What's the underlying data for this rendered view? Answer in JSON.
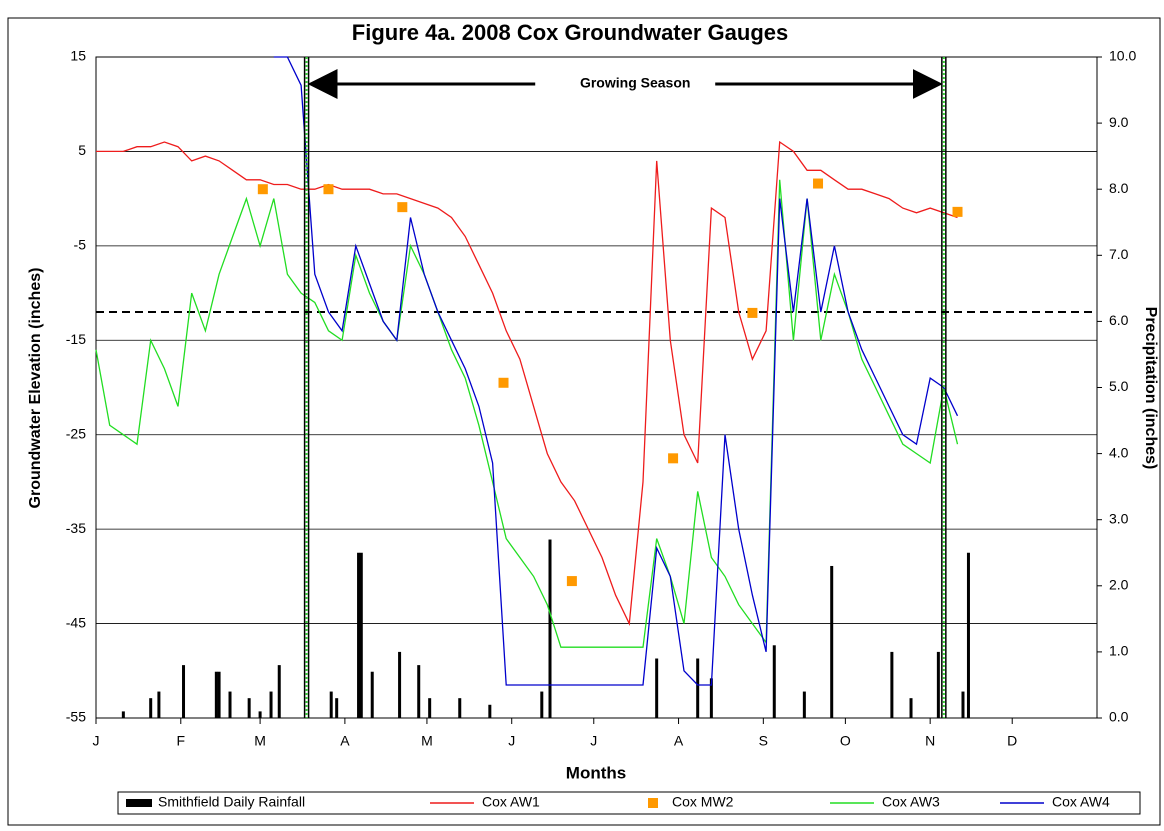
{
  "chart_data": {
    "type": "line",
    "title": "Figure 4a.  2008 Cox Groundwater Gauges",
    "x_label": "Months",
    "y_label": "Groundwater Elevation (inches)",
    "y2_label": "Precipitation (inches)",
    "xlim": [
      0,
      366
    ],
    "xticks": [
      {
        "value": 0,
        "label": "J"
      },
      {
        "value": 31,
        "label": "F"
      },
      {
        "value": 60,
        "label": "M"
      },
      {
        "value": 91,
        "label": "A"
      },
      {
        "value": 121,
        "label": "M"
      },
      {
        "value": 152,
        "label": "J"
      },
      {
        "value": 182,
        "label": "J"
      },
      {
        "value": 213,
        "label": "A"
      },
      {
        "value": 244,
        "label": "S"
      },
      {
        "value": 274,
        "label": "O"
      },
      {
        "value": 305,
        "label": "N"
      },
      {
        "value": 335,
        "label": "D"
      }
    ],
    "ylim": [
      -55,
      15
    ],
    "yticks": [
      15,
      5,
      -5,
      -15,
      -25,
      -35,
      -45,
      -55
    ],
    "y2lim": [
      0,
      10
    ],
    "y2ticks": [
      {
        "value": 10,
        "label": "10.0"
      },
      {
        "value": 9,
        "label": "9.0"
      },
      {
        "value": 8,
        "label": "8.0"
      },
      {
        "value": 7,
        "label": "7.0"
      },
      {
        "value": 6,
        "label": "6.0"
      },
      {
        "value": 5,
        "label": "5.0"
      },
      {
        "value": 4,
        "label": "4.0"
      },
      {
        "value": 3,
        "label": "3.0"
      },
      {
        "value": 2,
        "label": "2.0"
      },
      {
        "value": 1,
        "label": "1.0"
      },
      {
        "value": 0,
        "label": "0.0"
      }
    ],
    "grid": true,
    "reference_line": -12,
    "annotation": {
      "text": "Growing Season",
      "x": [
        77,
        310
      ]
    },
    "x": [
      0,
      5,
      10,
      15,
      20,
      25,
      30,
      35,
      40,
      45,
      50,
      55,
      60,
      65,
      70,
      75,
      80,
      85,
      90,
      95,
      100,
      105,
      110,
      115,
      120,
      125,
      130,
      135,
      140,
      145,
      150,
      155,
      160,
      165,
      170,
      175,
      180,
      185,
      190,
      195,
      200,
      205,
      210,
      215,
      220,
      225,
      230,
      235,
      240,
      245,
      250,
      255,
      260,
      265,
      270,
      275,
      280,
      285,
      290,
      295,
      300,
      305,
      310,
      315,
      320,
      325,
      330,
      335,
      340,
      345,
      350,
      355,
      360,
      365
    ],
    "series": [
      {
        "name": "Smithfield Daily Rainfall",
        "kind": "bar",
        "axis": "y2",
        "color": "#000000",
        "x": [
          10,
          20,
          23,
          32,
          44,
          45,
          49,
          56,
          60,
          64,
          67,
          86,
          88,
          96,
          97,
          101,
          111,
          118,
          122,
          133,
          144,
          163,
          166,
          205,
          220,
          225,
          248,
          259,
          269,
          291,
          298,
          308,
          317,
          319
        ],
        "values": [
          0.1,
          0.3,
          0.4,
          0.8,
          0.7,
          0.7,
          0.4,
          0.3,
          0.1,
          0.4,
          0.8,
          0.4,
          0.3,
          2.5,
          2.5,
          0.7,
          1.0,
          0.8,
          0.3,
          0.3,
          0.2,
          0.4,
          2.7,
          0.9,
          0.9,
          0.6,
          1.1,
          0.4,
          2.3,
          1.0,
          0.3,
          1.0,
          0.4,
          2.5
        ]
      },
      {
        "name": "Cox AW1",
        "kind": "line",
        "color": "#ee1c1c",
        "values": [
          5,
          5,
          5,
          5.5,
          5.5,
          6,
          5.5,
          4,
          4.5,
          4,
          3,
          2,
          2,
          1.5,
          1.5,
          1,
          1,
          1.5,
          1,
          1,
          1,
          0.5,
          0.5,
          0,
          -0.5,
          -1,
          -2,
          -4,
          -7,
          -10,
          -14,
          -17,
          -22,
          -27,
          -30,
          -32,
          -35,
          -38,
          -42,
          -45,
          -30,
          4,
          -15,
          -25,
          -28,
          -1,
          -2,
          -12,
          -17,
          -14,
          6,
          5,
          3,
          3,
          2,
          1,
          1,
          0.5,
          0,
          -1,
          -1.5,
          -1,
          -1.5,
          -2,
          null,
          null,
          null,
          null,
          null,
          null,
          null,
          null,
          null,
          null
        ]
      },
      {
        "name": "Cox MW2",
        "kind": "point",
        "color": "#ff9900",
        "x": [
          61,
          85,
          112,
          149,
          174,
          211,
          240,
          264,
          315
        ],
        "values": [
          1,
          1,
          -0.9,
          -19.5,
          -40.5,
          -27.5,
          -12.1,
          1.6,
          -1.4
        ]
      },
      {
        "name": "Cox AW3",
        "kind": "line",
        "color": "#22dd22",
        "values": [
          -16,
          -24,
          -25,
          -26,
          -15,
          -18,
          -22,
          -10,
          -14,
          -8,
          -4,
          0,
          -5,
          0,
          -8,
          -10,
          -11,
          -14,
          -15,
          -6,
          -10,
          -13,
          -15,
          -5,
          -8,
          -12,
          -16,
          -19,
          -24,
          -30,
          -36,
          -38,
          -40,
          -43,
          -47.5,
          -47.5,
          -47.5,
          -47.5,
          -47.5,
          -47.5,
          -47.5,
          -36,
          -40,
          -45,
          -31,
          -38,
          -40,
          -43,
          -45,
          -47,
          2,
          -15,
          0,
          -15,
          -8,
          -12,
          -17,
          -20,
          -23,
          -26,
          -27,
          -28,
          -20,
          -26,
          null,
          null,
          null,
          null,
          null,
          null,
          null,
          null,
          null,
          null
        ]
      },
      {
        "name": "Cox AW4",
        "kind": "line",
        "color": "#0000cc",
        "values": [
          null,
          null,
          null,
          null,
          null,
          null,
          null,
          null,
          null,
          null,
          null,
          null,
          null,
          15,
          15,
          12,
          -8,
          -12,
          -14,
          -5,
          -9,
          -13,
          -15,
          -2,
          -8,
          -12,
          -15,
          -18,
          -22,
          -28,
          -51.5,
          -51.5,
          -51.5,
          -51.5,
          -51.5,
          -51.5,
          -51.5,
          -51.5,
          -51.5,
          -51.5,
          -51.5,
          -37,
          -40,
          -50,
          -51.5,
          -51.5,
          -25,
          -35,
          -42,
          -48,
          0,
          -12,
          0,
          -12,
          -5,
          -12,
          -16,
          -19,
          -22,
          -25,
          -26,
          -19,
          -20,
          -23,
          null,
          null,
          null,
          null,
          null,
          null,
          null,
          null,
          null,
          null
        ]
      }
    ]
  }
}
